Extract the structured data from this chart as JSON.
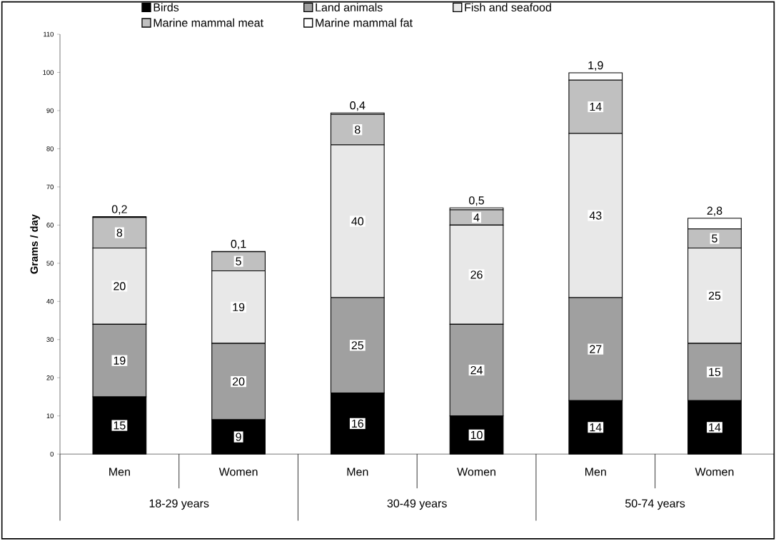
{
  "chart_data": {
    "type": "bar",
    "stacked": true,
    "ylabel": "Grams / day",
    "categories": [
      "Men",
      "Women",
      "Men",
      "Women",
      "Men",
      "Women"
    ],
    "annotations": [
      "18-29 years",
      "30-49 years",
      "50-74 years"
    ],
    "series": [
      {
        "name": "Birds",
        "color": "#000000",
        "values": [
          15,
          9,
          16,
          10,
          14,
          14
        ],
        "value_labels": [
          "15",
          "9",
          "16",
          "10",
          "14",
          "14"
        ]
      },
      {
        "name": "Land animals",
        "color": "#a0a0a0",
        "values": [
          19,
          20,
          25,
          24,
          27,
          15
        ],
        "value_labels": [
          "19",
          "20",
          "25",
          "24",
          "27",
          "15"
        ]
      },
      {
        "name": "Fish and seafood",
        "color": "#e8e8e8",
        "values": [
          20,
          19,
          40,
          26,
          43,
          25
        ],
        "value_labels": [
          "20",
          "19",
          "40",
          "26",
          "43",
          "25"
        ]
      },
      {
        "name": "Marine mammal meat",
        "color": "#c0c0c0",
        "values": [
          8,
          5,
          8,
          4,
          14,
          5
        ],
        "value_labels": [
          "8",
          "5",
          "8",
          "4",
          "14",
          "5"
        ]
      },
      {
        "name": "Marine mammal fat",
        "color": "#ffffff",
        "values": [
          0.2,
          0.1,
          0.4,
          0.5,
          1.9,
          2.8
        ],
        "value_labels": [
          "0,2",
          "0,1",
          "0,4",
          "0,5",
          "1,9",
          "2,8"
        ]
      }
    ],
    "ylim": [
      0,
      110
    ],
    "yticks": [
      0,
      10,
      20,
      30,
      40,
      50,
      60,
      70,
      80,
      90,
      100,
      110
    ],
    "legend": "top",
    "grid": false
  }
}
